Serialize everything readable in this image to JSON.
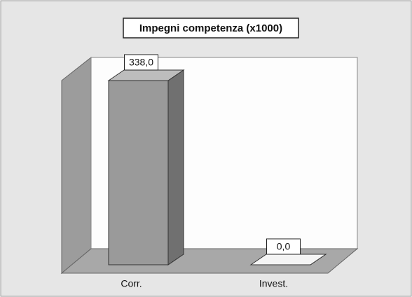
{
  "chart_data": {
    "type": "bar3d",
    "title": "Impegni competenza (x1000)",
    "categories": [
      "Corr.",
      "Invest."
    ],
    "values": [
      338,
      0
    ],
    "value_labels": [
      "338,0",
      "0,0"
    ],
    "color": "#9a9a9a"
  }
}
